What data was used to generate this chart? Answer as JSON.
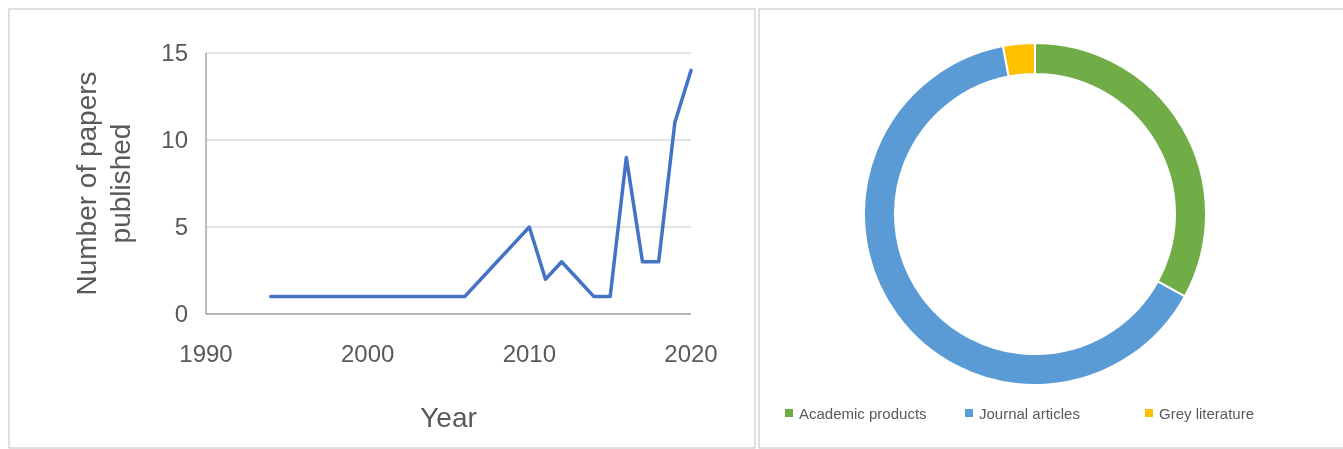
{
  "chart_data": [
    {
      "type": "line",
      "xlabel": "Year",
      "ylabel": "Number of papers published",
      "x": [
        1994,
        1995,
        1996,
        1997,
        1998,
        1999,
        2000,
        2001,
        2002,
        2003,
        2004,
        2005,
        2006,
        2007,
        2008,
        2009,
        2010,
        2011,
        2012,
        2013,
        2014,
        2015,
        2016,
        2017,
        2018,
        2019,
        2020
      ],
      "series": [
        {
          "color": "#4472c4",
          "values": [
            1,
            1,
            1,
            1,
            1,
            1,
            1,
            1,
            1,
            1,
            1,
            1,
            1,
            2,
            3,
            4,
            5,
            2,
            3,
            2,
            1,
            1,
            9,
            3,
            3,
            11,
            14
          ]
        }
      ],
      "xlim": [
        1990,
        2020
      ],
      "xticks": [
        1990,
        2000,
        2010,
        2020
      ],
      "ylim": [
        0,
        15
      ],
      "yticks": [
        0,
        5,
        10,
        15
      ],
      "grid": "y"
    },
    {
      "type": "donut",
      "categories": [
        "Academic products",
        "Journal articles",
        "Grey literature"
      ],
      "values": [
        33,
        64,
        3
      ],
      "colors": [
        "#70ad47",
        "#5b9bd5",
        "#ffc000"
      ],
      "legend": "bottom"
    }
  ]
}
